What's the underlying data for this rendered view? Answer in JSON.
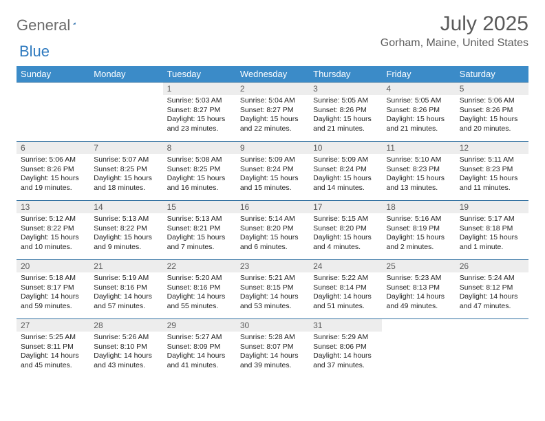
{
  "logo": {
    "text1": "General",
    "text2": "Blue"
  },
  "title": "July 2025",
  "location": "Gorham, Maine, United States",
  "day_headers": [
    "Sunday",
    "Monday",
    "Tuesday",
    "Wednesday",
    "Thursday",
    "Friday",
    "Saturday"
  ],
  "colors": {
    "header_bg": "#3b8bc8",
    "header_text": "#ffffff",
    "daynum_bg": "#ededed",
    "border": "#2f6fa0",
    "logo_gray": "#6b6b6b",
    "logo_blue": "#2f7abf",
    "text_gray": "#5a5a5a"
  },
  "weeks": [
    [
      null,
      null,
      {
        "n": "1",
        "sr": "5:03 AM",
        "ss": "8:27 PM",
        "dl": "15 hours and 23 minutes."
      },
      {
        "n": "2",
        "sr": "5:04 AM",
        "ss": "8:27 PM",
        "dl": "15 hours and 22 minutes."
      },
      {
        "n": "3",
        "sr": "5:05 AM",
        "ss": "8:26 PM",
        "dl": "15 hours and 21 minutes."
      },
      {
        "n": "4",
        "sr": "5:05 AM",
        "ss": "8:26 PM",
        "dl": "15 hours and 21 minutes."
      },
      {
        "n": "5",
        "sr": "5:06 AM",
        "ss": "8:26 PM",
        "dl": "15 hours and 20 minutes."
      }
    ],
    [
      {
        "n": "6",
        "sr": "5:06 AM",
        "ss": "8:26 PM",
        "dl": "15 hours and 19 minutes."
      },
      {
        "n": "7",
        "sr": "5:07 AM",
        "ss": "8:25 PM",
        "dl": "15 hours and 18 minutes."
      },
      {
        "n": "8",
        "sr": "5:08 AM",
        "ss": "8:25 PM",
        "dl": "15 hours and 16 minutes."
      },
      {
        "n": "9",
        "sr": "5:09 AM",
        "ss": "8:24 PM",
        "dl": "15 hours and 15 minutes."
      },
      {
        "n": "10",
        "sr": "5:09 AM",
        "ss": "8:24 PM",
        "dl": "15 hours and 14 minutes."
      },
      {
        "n": "11",
        "sr": "5:10 AM",
        "ss": "8:23 PM",
        "dl": "15 hours and 13 minutes."
      },
      {
        "n": "12",
        "sr": "5:11 AM",
        "ss": "8:23 PM",
        "dl": "15 hours and 11 minutes."
      }
    ],
    [
      {
        "n": "13",
        "sr": "5:12 AM",
        "ss": "8:22 PM",
        "dl": "15 hours and 10 minutes."
      },
      {
        "n": "14",
        "sr": "5:13 AM",
        "ss": "8:22 PM",
        "dl": "15 hours and 9 minutes."
      },
      {
        "n": "15",
        "sr": "5:13 AM",
        "ss": "8:21 PM",
        "dl": "15 hours and 7 minutes."
      },
      {
        "n": "16",
        "sr": "5:14 AM",
        "ss": "8:20 PM",
        "dl": "15 hours and 6 minutes."
      },
      {
        "n": "17",
        "sr": "5:15 AM",
        "ss": "8:20 PM",
        "dl": "15 hours and 4 minutes."
      },
      {
        "n": "18",
        "sr": "5:16 AM",
        "ss": "8:19 PM",
        "dl": "15 hours and 2 minutes."
      },
      {
        "n": "19",
        "sr": "5:17 AM",
        "ss": "8:18 PM",
        "dl": "15 hours and 1 minute."
      }
    ],
    [
      {
        "n": "20",
        "sr": "5:18 AM",
        "ss": "8:17 PM",
        "dl": "14 hours and 59 minutes."
      },
      {
        "n": "21",
        "sr": "5:19 AM",
        "ss": "8:16 PM",
        "dl": "14 hours and 57 minutes."
      },
      {
        "n": "22",
        "sr": "5:20 AM",
        "ss": "8:16 PM",
        "dl": "14 hours and 55 minutes."
      },
      {
        "n": "23",
        "sr": "5:21 AM",
        "ss": "8:15 PM",
        "dl": "14 hours and 53 minutes."
      },
      {
        "n": "24",
        "sr": "5:22 AM",
        "ss": "8:14 PM",
        "dl": "14 hours and 51 minutes."
      },
      {
        "n": "25",
        "sr": "5:23 AM",
        "ss": "8:13 PM",
        "dl": "14 hours and 49 minutes."
      },
      {
        "n": "26",
        "sr": "5:24 AM",
        "ss": "8:12 PM",
        "dl": "14 hours and 47 minutes."
      }
    ],
    [
      {
        "n": "27",
        "sr": "5:25 AM",
        "ss": "8:11 PM",
        "dl": "14 hours and 45 minutes."
      },
      {
        "n": "28",
        "sr": "5:26 AM",
        "ss": "8:10 PM",
        "dl": "14 hours and 43 minutes."
      },
      {
        "n": "29",
        "sr": "5:27 AM",
        "ss": "8:09 PM",
        "dl": "14 hours and 41 minutes."
      },
      {
        "n": "30",
        "sr": "5:28 AM",
        "ss": "8:07 PM",
        "dl": "14 hours and 39 minutes."
      },
      {
        "n": "31",
        "sr": "5:29 AM",
        "ss": "8:06 PM",
        "dl": "14 hours and 37 minutes."
      },
      null,
      null
    ]
  ],
  "labels": {
    "sunrise": "Sunrise: ",
    "sunset": "Sunset: ",
    "daylight": "Daylight: "
  }
}
